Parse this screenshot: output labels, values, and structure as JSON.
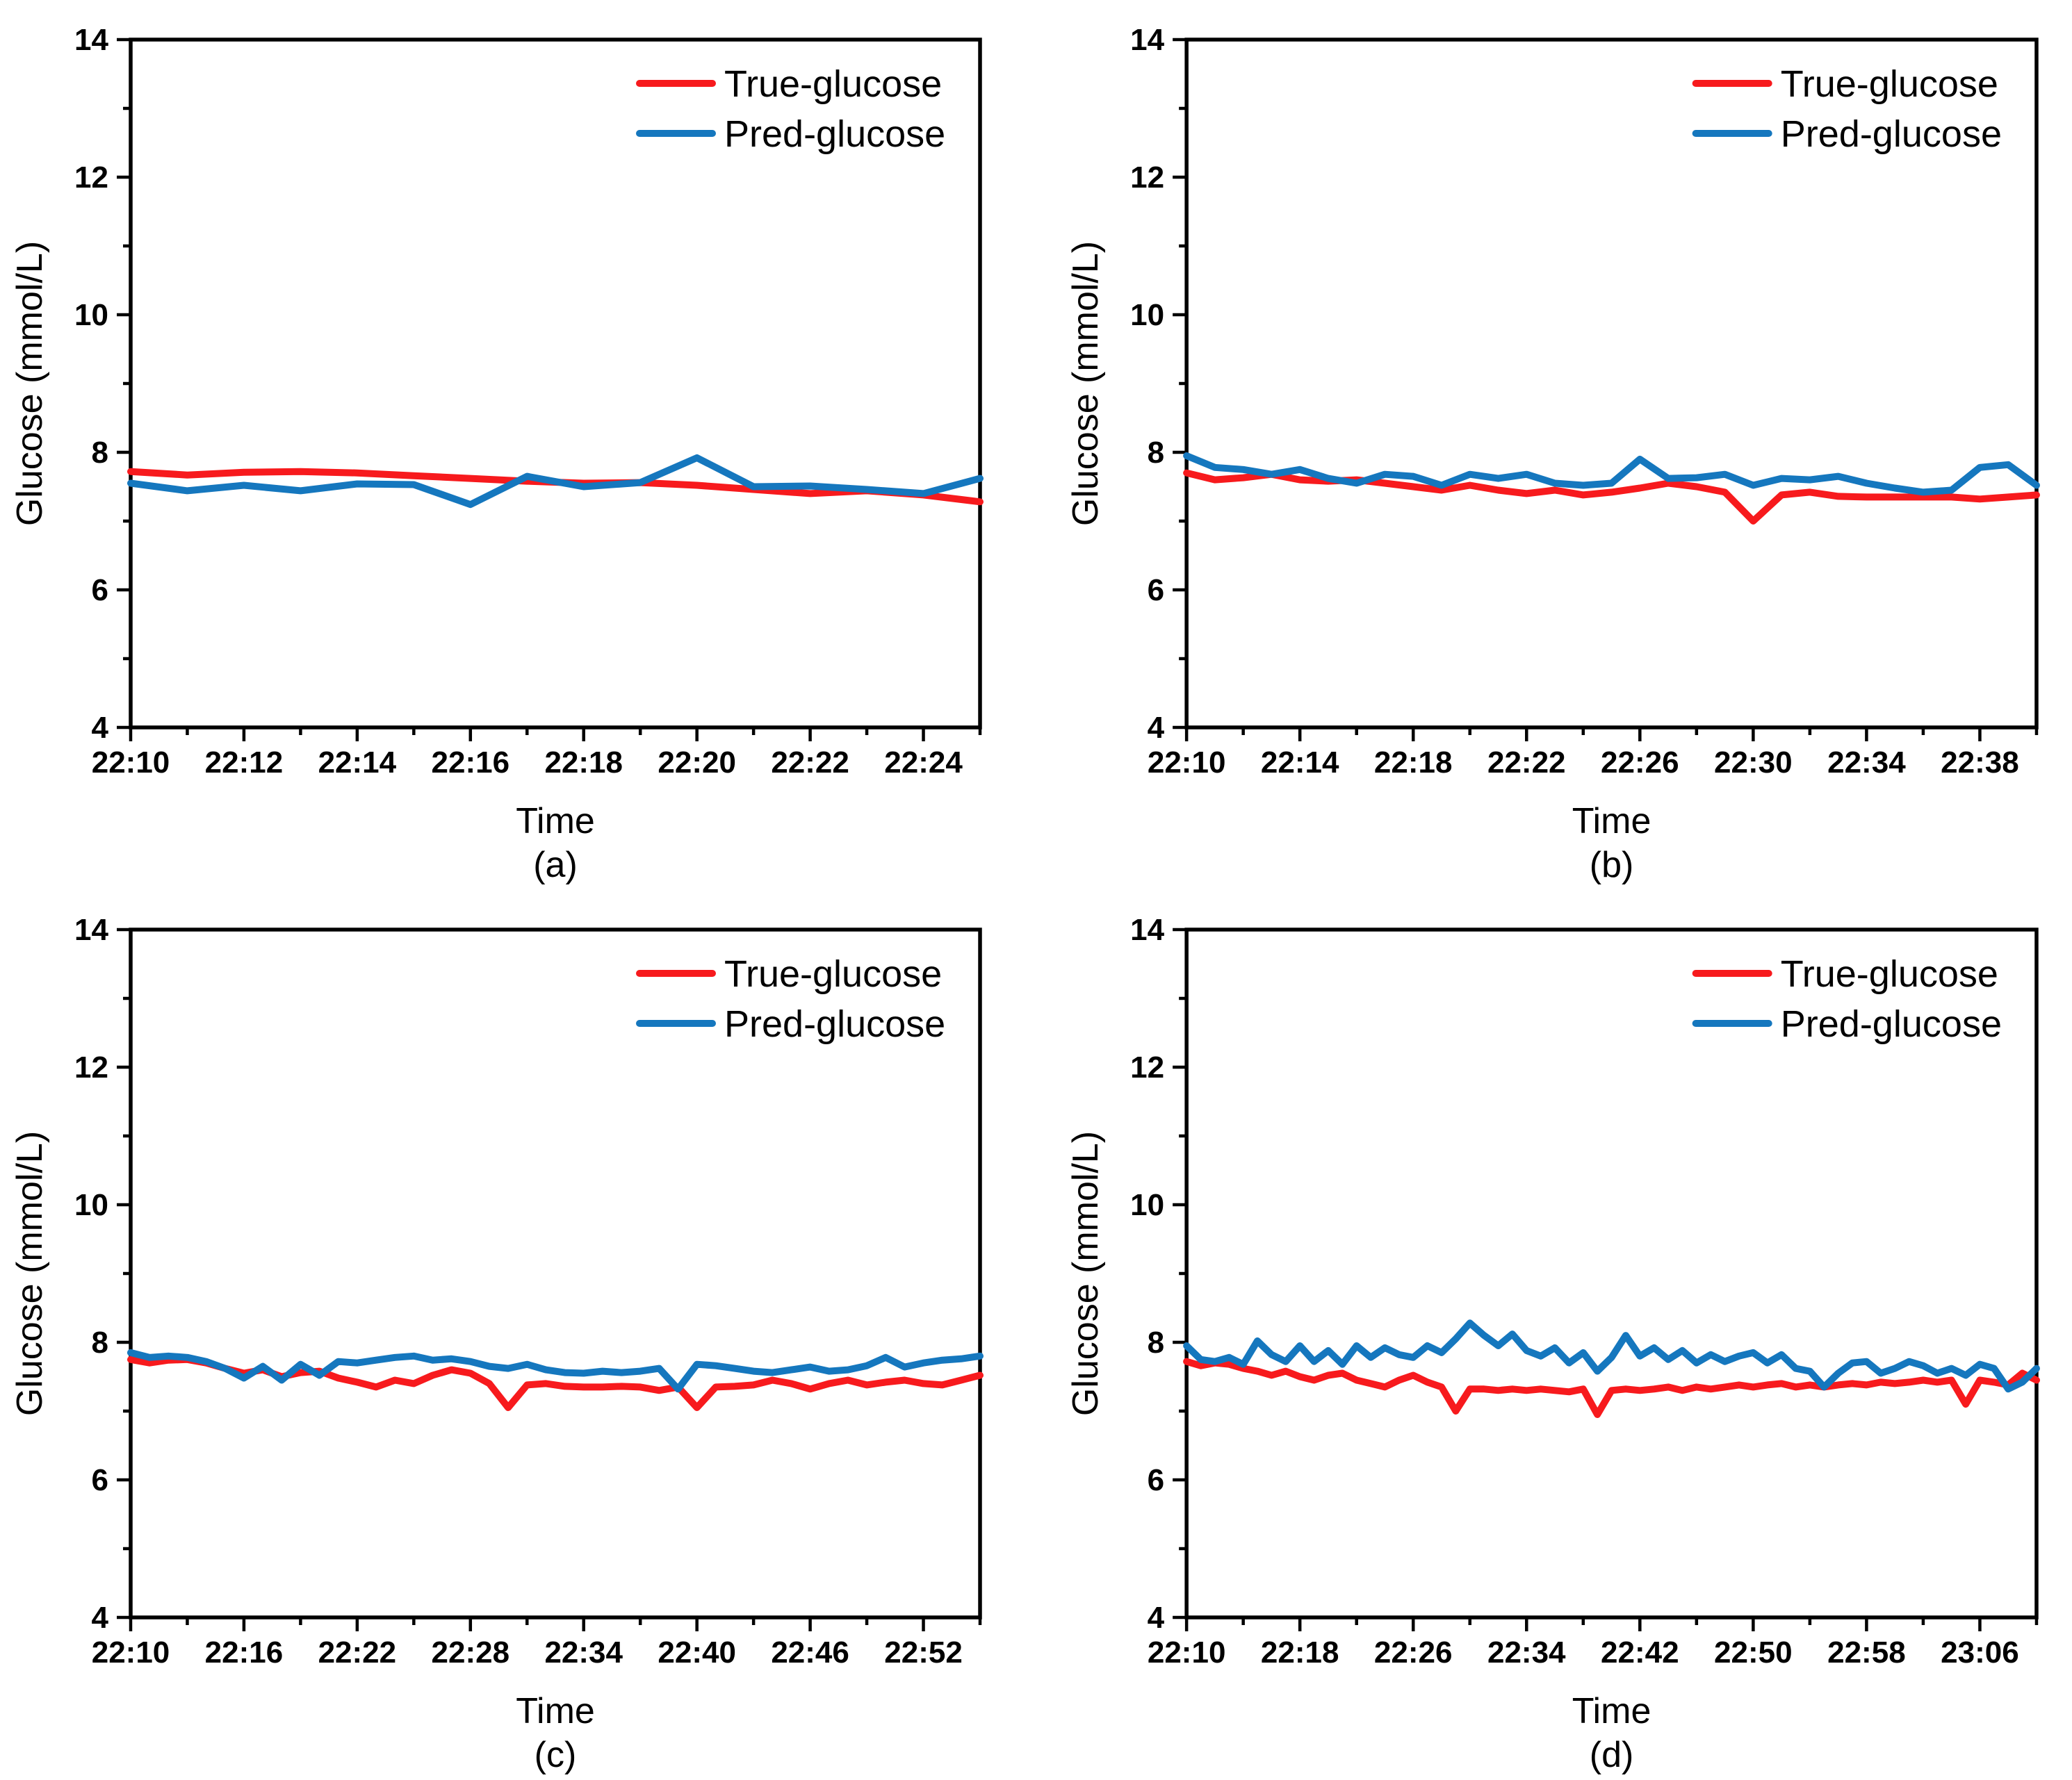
{
  "figure": {
    "background": "#ffffff",
    "description": "2x2 grid of glucose prediction line charts"
  },
  "colors": {
    "true_glucose": "#F71A1D",
    "pred_glucose": "#1577BE",
    "axis": "#000000"
  },
  "legend": {
    "position": "top-right",
    "items": [
      {
        "label": "True-glucose",
        "color": "#F71A1D"
      },
      {
        "label": "Pred-glucose",
        "color": "#1577BE"
      }
    ]
  },
  "chart_data": [
    {
      "id": "a",
      "caption": "(a)",
      "type": "line",
      "title": "",
      "xlabel": "Time",
      "ylabel": "Glucose (mmol/L)",
      "ylim": [
        4,
        14
      ],
      "yticks": [
        4,
        6,
        8,
        10,
        12,
        14
      ],
      "y_minor_ticks": [
        5,
        7,
        9,
        11,
        13
      ],
      "xlim": [
        0,
        15
      ],
      "x_unit": "minutes after 22:10, 1-min sampling",
      "x_tick_positions": [
        0,
        2,
        4,
        6,
        8,
        10,
        12,
        14
      ],
      "x_tick_labels": [
        "22:10",
        "22:12",
        "22:14",
        "22:16",
        "22:18",
        "22:20",
        "22:22",
        "22:24"
      ],
      "x_minor_positions": [
        1,
        3,
        5,
        7,
        9,
        11,
        13,
        15
      ],
      "grid": false,
      "legend": [
        "True-glucose",
        "Pred-glucose"
      ],
      "series": [
        {
          "key": "true-glucose",
          "name": "True-glucose",
          "color": "#F71A1D",
          "values": [
            7.72,
            7.67,
            7.71,
            7.72,
            7.7,
            7.66,
            7.62,
            7.58,
            7.55,
            7.56,
            7.52,
            7.46,
            7.4,
            7.44,
            7.38,
            7.28
          ]
        },
        {
          "key": "pred-glucose",
          "name": "Pred-glucose",
          "color": "#1577BE",
          "values": [
            7.55,
            7.44,
            7.52,
            7.44,
            7.54,
            7.53,
            7.24,
            7.65,
            7.5,
            7.56,
            7.92,
            7.5,
            7.51,
            7.46,
            7.4,
            7.62
          ]
        }
      ]
    },
    {
      "id": "b",
      "caption": "(b)",
      "type": "line",
      "title": "",
      "xlabel": "Time",
      "ylabel": "Glucose (mmol/L)",
      "ylim": [
        4,
        14
      ],
      "yticks": [
        4,
        6,
        8,
        10,
        12,
        14
      ],
      "y_minor_ticks": [
        5,
        7,
        9,
        11,
        13
      ],
      "xlim": [
        0,
        30
      ],
      "x_unit": "minutes after 22:10, 1-min sampling",
      "x_tick_positions": [
        0,
        4,
        8,
        12,
        16,
        20,
        24,
        28
      ],
      "x_tick_labels": [
        "22:10",
        "22:14",
        "22:18",
        "22:22",
        "22:26",
        "22:30",
        "22:34",
        "22:38"
      ],
      "x_minor_positions": [
        2,
        6,
        10,
        14,
        18,
        22,
        26,
        30
      ],
      "grid": false,
      "legend": [
        "True-glucose",
        "Pred-glucose"
      ],
      "series": [
        {
          "key": "true-glucose",
          "name": "True-glucose",
          "color": "#F71A1D",
          "values": [
            7.7,
            7.6,
            7.63,
            7.68,
            7.6,
            7.58,
            7.6,
            7.55,
            7.5,
            7.45,
            7.52,
            7.45,
            7.4,
            7.45,
            7.38,
            7.42,
            7.48,
            7.55,
            7.5,
            7.42,
            7.0,
            7.38,
            7.42,
            7.36,
            7.35,
            7.35,
            7.35,
            7.35,
            7.32,
            7.35,
            7.38
          ]
        },
        {
          "key": "pred-glucose",
          "name": "Pred-glucose",
          "color": "#1577BE",
          "values": [
            7.95,
            7.78,
            7.75,
            7.68,
            7.75,
            7.62,
            7.55,
            7.68,
            7.65,
            7.52,
            7.68,
            7.62,
            7.68,
            7.55,
            7.52,
            7.55,
            7.9,
            7.62,
            7.63,
            7.68,
            7.52,
            7.62,
            7.6,
            7.65,
            7.55,
            7.48,
            7.42,
            7.45,
            7.78,
            7.82,
            7.52
          ]
        }
      ]
    },
    {
      "id": "c",
      "caption": "(c)",
      "type": "line",
      "title": "",
      "xlabel": "Time",
      "ylabel": "Glucose (mmol/L)",
      "ylim": [
        4,
        14
      ],
      "yticks": [
        4,
        6,
        8,
        10,
        12,
        14
      ],
      "y_minor_ticks": [
        5,
        7,
        9,
        11,
        13
      ],
      "xlim": [
        0,
        45
      ],
      "x_unit": "minutes after 22:10, 1-min sampling",
      "x_tick_positions": [
        0,
        6,
        12,
        18,
        24,
        30,
        36,
        42
      ],
      "x_tick_labels": [
        "22:10",
        "22:16",
        "22:22",
        "22:28",
        "22:34",
        "22:40",
        "22:46",
        "22:52"
      ],
      "x_minor_positions": [
        3,
        9,
        15,
        21,
        27,
        33,
        39,
        45
      ],
      "grid": false,
      "legend": [
        "True-glucose",
        "Pred-glucose"
      ],
      "series": [
        {
          "key": "true-glucose",
          "name": "True-glucose",
          "color": "#F71A1D",
          "values": [
            7.75,
            7.7,
            7.74,
            7.75,
            7.7,
            7.62,
            7.55,
            7.6,
            7.5,
            7.56,
            7.58,
            7.48,
            7.42,
            7.35,
            7.45,
            7.4,
            7.52,
            7.6,
            7.55,
            7.4,
            7.05,
            7.38,
            7.4,
            7.36,
            7.35,
            7.35,
            7.36,
            7.35,
            7.3,
            7.35,
            7.05,
            7.35,
            7.36,
            7.38,
            7.45,
            7.4,
            7.32,
            7.4,
            7.45,
            7.38,
            7.42,
            7.45,
            7.4,
            7.38,
            7.45,
            7.52
          ]
        },
        {
          "key": "pred-glucose",
          "name": "Pred-glucose",
          "color": "#1577BE",
          "values": [
            7.85,
            7.78,
            7.8,
            7.78,
            7.72,
            7.62,
            7.48,
            7.65,
            7.45,
            7.68,
            7.52,
            7.72,
            7.7,
            7.74,
            7.78,
            7.8,
            7.74,
            7.76,
            7.72,
            7.65,
            7.62,
            7.68,
            7.6,
            7.56,
            7.55,
            7.58,
            7.56,
            7.58,
            7.62,
            7.32,
            7.68,
            7.66,
            7.62,
            7.58,
            7.56,
            7.6,
            7.64,
            7.58,
            7.6,
            7.66,
            7.78,
            7.64,
            7.7,
            7.74,
            7.76,
            7.8
          ]
        }
      ]
    },
    {
      "id": "d",
      "caption": "(d)",
      "type": "line",
      "title": "",
      "xlabel": "Time",
      "ylabel": "Glucose (mmol/L)",
      "ylim": [
        4,
        14
      ],
      "yticks": [
        4,
        6,
        8,
        10,
        12,
        14
      ],
      "y_minor_ticks": [
        5,
        7,
        9,
        11,
        13
      ],
      "xlim": [
        0,
        60
      ],
      "x_unit": "minutes after 22:10, 1-min sampling",
      "x_tick_positions": [
        0,
        8,
        16,
        24,
        32,
        40,
        48,
        56
      ],
      "x_tick_labels": [
        "22:10",
        "22:18",
        "22:26",
        "22:34",
        "22:42",
        "22:50",
        "22:58",
        "23:06"
      ],
      "x_minor_positions": [
        4,
        12,
        20,
        28,
        36,
        44,
        52,
        60
      ],
      "grid": false,
      "legend": [
        "True-glucose",
        "Pred-glucose"
      ],
      "series": [
        {
          "key": "true-glucose",
          "name": "True-glucose",
          "color": "#F71A1D",
          "values": [
            7.72,
            7.66,
            7.7,
            7.68,
            7.62,
            7.58,
            7.52,
            7.58,
            7.5,
            7.45,
            7.52,
            7.55,
            7.45,
            7.4,
            7.35,
            7.45,
            7.52,
            7.42,
            7.35,
            7.0,
            7.32,
            7.32,
            7.3,
            7.32,
            7.3,
            7.32,
            7.3,
            7.28,
            7.32,
            6.95,
            7.3,
            7.32,
            7.3,
            7.32,
            7.35,
            7.3,
            7.35,
            7.32,
            7.35,
            7.38,
            7.35,
            7.38,
            7.4,
            7.35,
            7.38,
            7.35,
            7.38,
            7.4,
            7.38,
            7.42,
            7.4,
            7.42,
            7.45,
            7.42,
            7.45,
            7.1,
            7.45,
            7.42,
            7.38,
            7.55,
            7.45
          ]
        },
        {
          "key": "pred-glucose",
          "name": "Pred-glucose",
          "color": "#1577BE",
          "values": [
            7.95,
            7.75,
            7.72,
            7.78,
            7.68,
            8.02,
            7.82,
            7.72,
            7.95,
            7.72,
            7.88,
            7.68,
            7.95,
            7.78,
            7.92,
            7.82,
            7.78,
            7.95,
            7.85,
            8.05,
            8.28,
            8.1,
            7.95,
            8.12,
            7.88,
            7.8,
            7.92,
            7.7,
            7.85,
            7.58,
            7.78,
            8.1,
            7.8,
            7.92,
            7.75,
            7.88,
            7.7,
            7.82,
            7.72,
            7.8,
            7.85,
            7.7,
            7.82,
            7.62,
            7.58,
            7.35,
            7.55,
            7.7,
            7.72,
            7.55,
            7.62,
            7.72,
            7.66,
            7.55,
            7.62,
            7.52,
            7.68,
            7.62,
            7.32,
            7.42,
            7.62
          ]
        }
      ]
    }
  ]
}
